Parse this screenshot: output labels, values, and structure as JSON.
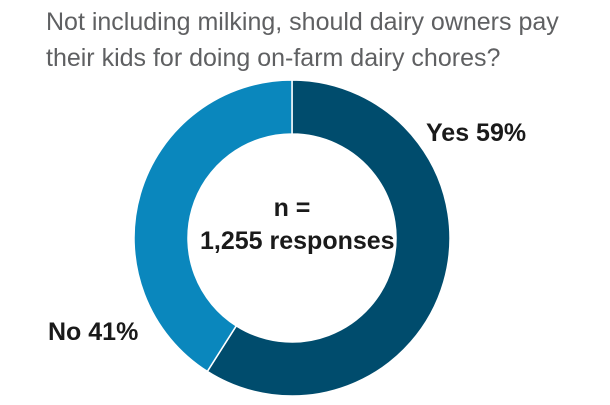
{
  "chart_data": {
    "type": "pie",
    "donut": true,
    "title_lines": [
      "Not including milking, should dairy owners pay",
      "their kids for doing on-farm dairy chores?"
    ],
    "center_lines": [
      "n =",
      "1,255 responses"
    ],
    "categories": [
      "Yes",
      "No"
    ],
    "values": [
      59,
      41
    ],
    "unit": "%",
    "slice_labels": [
      "Yes 59%",
      "No 41%"
    ],
    "colors": [
      "#004c6d",
      "#0a87bd"
    ],
    "start_angle_deg": 0,
    "direction": "clockwise"
  }
}
